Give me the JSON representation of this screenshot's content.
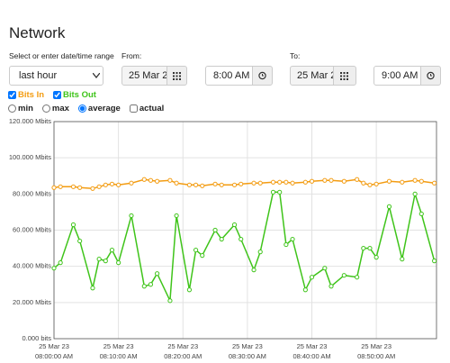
{
  "header": {
    "title": "Network"
  },
  "range": {
    "label": "Select or enter date/time range",
    "preset": "last hour",
    "from_label": "From:",
    "from_date": "25 Mar 2",
    "from_time": "8:00 AM",
    "to_label": "To:",
    "to_date": "25 Mar 2",
    "to_time": "9:00 AM"
  },
  "options": {
    "aggregations": [
      "min",
      "max",
      "average"
    ],
    "selected": 2,
    "actual": "actual"
  },
  "chart_data": {
    "type": "line",
    "x": [
      "08:00:00 AM",
      "08:01:00 AM",
      "08:03:00 AM",
      "08:04:00 AM",
      "08:06:00 AM",
      "08:07:00 AM",
      "08:08:00 AM",
      "08:09:00 AM",
      "08:10:00 AM",
      "08:12:00 AM",
      "08:14:00 AM",
      "08:15:00 AM",
      "08:16:00 AM",
      "08:18:00 AM",
      "08:19:00 AM",
      "08:21:00 AM",
      "08:22:00 AM",
      "08:23:00 AM",
      "08:25:00 AM",
      "08:26:00 AM",
      "08:28:00 AM",
      "08:29:00 AM",
      "08:31:00 AM",
      "08:32:00 AM",
      "08:34:00 AM",
      "08:35:00 AM",
      "08:36:00 AM",
      "08:37:00 AM",
      "08:39:00 AM",
      "08:40:00 AM",
      "08:42:00 AM",
      "08:43:00 AM",
      "08:45:00 AM",
      "08:47:00 AM",
      "08:48:00 AM",
      "08:49:00 AM",
      "08:50:00 AM",
      "08:52:00 AM",
      "08:54:00 AM",
      "08:56:00 AM",
      "08:57:00 AM",
      "08:59:00 AM"
    ],
    "series": [
      {
        "name": "Bits In",
        "color": "#f39c12",
        "values": [
          83.5,
          84,
          84,
          83.5,
          83,
          84,
          85,
          85.5,
          85,
          86,
          88,
          87.5,
          87,
          87.5,
          86,
          85,
          85,
          84.5,
          85.5,
          85,
          85,
          85.5,
          86,
          86,
          86.5,
          86.5,
          86.5,
          86,
          86.5,
          87,
          87.5,
          87.5,
          87,
          88,
          86,
          85,
          85.5,
          87,
          86.5,
          87.5,
          87,
          86
        ]
      },
      {
        "name": "Bits Out",
        "color": "#3fc41a",
        "values": [
          39,
          42,
          63,
          54,
          28,
          44,
          43,
          49,
          42,
          68,
          29,
          30,
          36,
          21,
          68,
          27,
          49,
          46,
          60,
          55,
          63,
          55,
          38,
          48,
          81,
          81,
          52,
          55,
          27,
          34,
          39,
          29,
          35,
          34,
          50,
          50,
          45,
          73,
          44,
          80,
          69,
          43
        ]
      }
    ],
    "xlim": [
      "08:00:00 AM",
      "08:59:20 AM"
    ],
    "xticks": [
      {
        "value": "08:00:00 AM",
        "label": [
          "25 Mar 23",
          "08:00:00 AM"
        ]
      },
      {
        "value": "08:10:00 AM",
        "label": [
          "25 Mar 23",
          "08:10:00 AM"
        ]
      },
      {
        "value": "08:20:00 AM",
        "label": [
          "25 Mar 23",
          "08:20:00 AM"
        ]
      },
      {
        "value": "08:30:00 AM",
        "label": [
          "25 Mar 23",
          "08:30:00 AM"
        ]
      },
      {
        "value": "08:40:00 AM",
        "label": [
          "25 Mar 23",
          "08:40:00 AM"
        ]
      },
      {
        "value": "08:50:00 AM",
        "label": [
          "25 Mar 23",
          "08:50:00 AM"
        ]
      }
    ],
    "ylim": [
      0,
      120
    ],
    "yticks": [
      {
        "value": 0,
        "label": "0.000 bits"
      },
      {
        "value": 20,
        "label": "20.000 Mbits"
      },
      {
        "value": 40,
        "label": "40.000 Mbits"
      },
      {
        "value": 60,
        "label": "60.000 Mbits"
      },
      {
        "value": 80,
        "label": "80.000 Mbits"
      },
      {
        "value": 100,
        "label": "100.000 Mbits"
      },
      {
        "value": 120,
        "label": "120.000 Mbits"
      }
    ],
    "grid": true
  }
}
